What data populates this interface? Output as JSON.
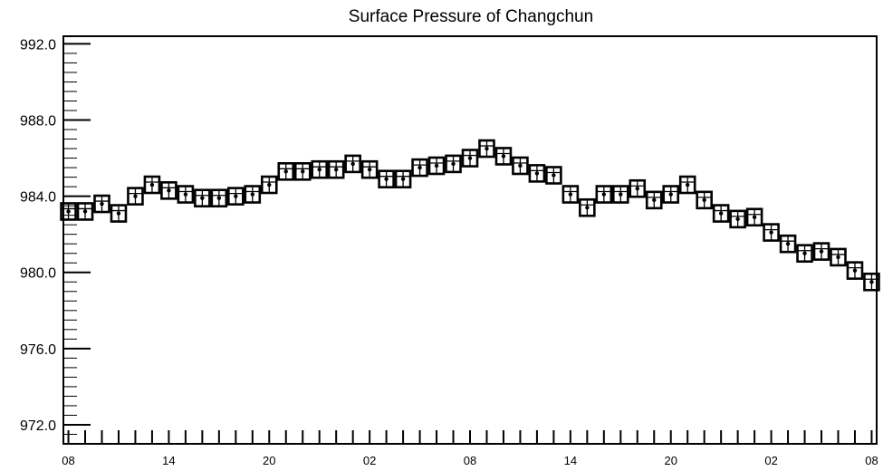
{
  "chart_data": {
    "type": "scatter",
    "title": "Surface Pressure of Changchun",
    "xlabel": "",
    "ylabel": "",
    "ylim": [
      971,
      992.4
    ],
    "y_tick_labels": [
      "992.0",
      "988.0",
      "984.0",
      "980.0",
      "976.0",
      "972.0"
    ],
    "y_tick_values": [
      992,
      988,
      984,
      980,
      976,
      972
    ],
    "x_tick_labels": [
      "08",
      "14",
      "20",
      "02",
      "08",
      "14",
      "20",
      "02",
      "08"
    ],
    "x_tick_hours": [
      0,
      6,
      12,
      18,
      24,
      30,
      36,
      42,
      48
    ],
    "xlim": [
      -0.3,
      48.3
    ],
    "grid": false,
    "marker": "boxed-cross",
    "series": [
      {
        "x": [
          0,
          1,
          2,
          3,
          4,
          5,
          6,
          7,
          8,
          9,
          10,
          11,
          12,
          13,
          14,
          15,
          16,
          17,
          18,
          19,
          20,
          21,
          22,
          23,
          24,
          25,
          26,
          27,
          28,
          29,
          30,
          31,
          32,
          33,
          34,
          35,
          36,
          37,
          38,
          39,
          40,
          41,
          42,
          43,
          44,
          45,
          46,
          47,
          48
        ],
        "values": [
          983.2,
          983.2,
          983.6,
          983.1,
          984.0,
          984.6,
          984.3,
          984.1,
          983.9,
          983.9,
          984.0,
          984.1,
          984.6,
          985.3,
          985.3,
          985.4,
          985.4,
          985.7,
          985.4,
          984.9,
          984.9,
          985.5,
          985.6,
          985.7,
          986.0,
          986.5,
          986.1,
          985.6,
          985.2,
          985.1,
          984.1,
          983.4,
          984.1,
          984.1,
          984.4,
          983.8,
          984.1,
          984.6,
          983.8,
          983.1,
          982.8,
          982.9,
          982.1,
          981.5,
          981.0,
          981.1,
          980.8,
          980.1,
          979.5
        ]
      }
    ]
  }
}
